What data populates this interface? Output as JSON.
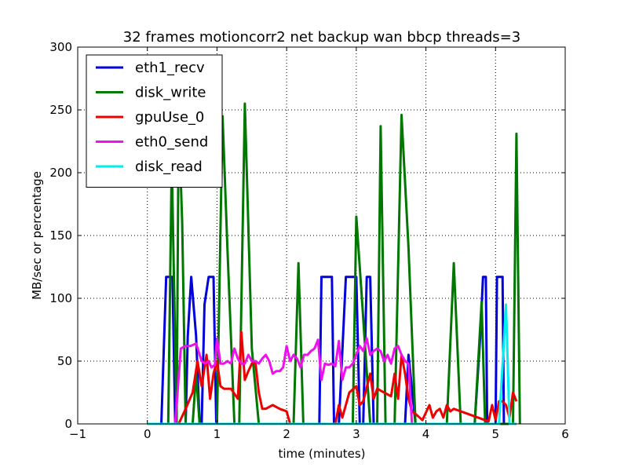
{
  "chart_data": {
    "type": "line",
    "title": "32 frames motioncorr2 net backup wan bbcp threads=3",
    "xlabel": "time (minutes)",
    "ylabel": "MB/sec or percentage",
    "xlim": [
      -1,
      6
    ],
    "ylim": [
      0,
      300
    ],
    "xticks": [
      -1,
      0,
      1,
      2,
      3,
      4,
      5,
      6
    ],
    "yticks": [
      0,
      50,
      100,
      150,
      200,
      250,
      300
    ],
    "grid": true,
    "legend_position": "top-left",
    "series": [
      {
        "name": "eth1_recv",
        "color": "#0000dd",
        "x": [
          0,
          0.2,
          0.27,
          0.3,
          0.33,
          0.36,
          0.4,
          0.45,
          0.5,
          0.55,
          0.58,
          0.63,
          0.7,
          0.75,
          0.78,
          0.82,
          0.88,
          0.95,
          0.99,
          1.05,
          2.4,
          2.47,
          2.5,
          2.6,
          2.65,
          2.68,
          2.75,
          2.85,
          2.95,
          3.0,
          3.05,
          3.1,
          3.15,
          3.2,
          3.25,
          3.35,
          3.7,
          3.75,
          3.85,
          4.7,
          4.78,
          4.82,
          4.86,
          4.88,
          4.92,
          5.0,
          5.02,
          5.06,
          5.1,
          5.12,
          5.2,
          5.3
        ],
        "y": [
          0,
          0,
          117,
          117,
          117,
          117,
          0,
          0,
          0,
          0,
          70,
          117,
          70,
          0,
          0,
          95,
          117,
          117,
          0,
          0,
          0,
          0,
          117,
          117,
          117,
          0,
          0,
          117,
          117,
          117,
          0,
          0,
          117,
          117,
          0,
          0,
          0,
          55,
          0,
          0,
          70,
          117,
          117,
          0,
          0,
          0,
          117,
          117,
          117,
          0,
          0,
          0
        ]
      },
      {
        "name": "disk_write",
        "color": "#007700",
        "x": [
          0,
          0.3,
          0.35,
          0.42,
          0.45,
          0.5,
          0.55,
          0.6,
          0.65,
          0.7,
          0.75,
          0.8,
          0.88,
          1.0,
          1.08,
          1.15,
          1.25,
          1.32,
          1.4,
          1.5,
          1.6,
          2.1,
          2.17,
          2.24,
          2.4,
          2.95,
          3.0,
          3.08,
          3.2,
          3.3,
          3.35,
          3.42,
          3.55,
          3.65,
          3.75,
          3.85,
          4.3,
          4.4,
          4.5,
          4.7,
          4.8,
          4.85,
          4.9,
          5.15,
          5.2,
          5.25,
          5.3,
          5.35
        ],
        "y": [
          0,
          0,
          210,
          0,
          245,
          160,
          0,
          0,
          0,
          40,
          0,
          0,
          0,
          0,
          245,
          140,
          0,
          0,
          255,
          60,
          0,
          0,
          128,
          0,
          0,
          0,
          165,
          100,
          0,
          0,
          237,
          0,
          0,
          246,
          140,
          0,
          0,
          128,
          0,
          0,
          97,
          0,
          0,
          0,
          0,
          0,
          231,
          0
        ]
      },
      {
        "name": "gpuUse_0",
        "color": "#ee0000",
        "x": [
          0.45,
          0.55,
          0.65,
          0.72,
          0.78,
          0.85,
          0.9,
          0.95,
          1.0,
          1.05,
          1.1,
          1.2,
          1.3,
          1.35,
          1.4,
          1.45,
          1.5,
          1.55,
          1.6,
          1.65,
          1.7,
          1.8,
          1.9,
          2.0,
          2.05,
          2.7,
          2.75,
          2.8,
          2.9,
          3.0,
          3.05,
          3.1,
          3.2,
          3.25,
          3.3,
          3.4,
          3.5,
          3.55,
          3.6,
          3.65,
          3.7,
          3.75,
          3.8,
          3.85,
          3.95,
          4.05,
          4.1,
          4.15,
          4.2,
          4.25,
          4.3,
          4.35,
          4.4,
          4.9,
          4.95,
          5.0,
          5.05,
          5.1,
          5.15,
          5.2,
          5.25,
          5.3
        ],
        "y": [
          0,
          12,
          25,
          50,
          30,
          55,
          20,
          40,
          50,
          30,
          28,
          28,
          20,
          73,
          35,
          42,
          48,
          50,
          25,
          12,
          12,
          15,
          12,
          10,
          0,
          0,
          15,
          5,
          25,
          30,
          15,
          18,
          40,
          20,
          28,
          25,
          22,
          40,
          20,
          55,
          40,
          20,
          10,
          8,
          3,
          15,
          5,
          10,
          12,
          5,
          15,
          10,
          12,
          2,
          15,
          3,
          18,
          18,
          15,
          5,
          25,
          18
        ]
      },
      {
        "name": "eth0_send",
        "color": "#ee11ee",
        "x": [
          0.4,
          0.48,
          0.55,
          0.62,
          0.7,
          0.78,
          0.83,
          0.88,
          0.92,
          0.97,
          1.0,
          1.05,
          1.1,
          1.15,
          1.2,
          1.25,
          1.3,
          1.35,
          1.4,
          1.45,
          1.5,
          1.55,
          1.6,
          1.65,
          1.7,
          1.75,
          1.8,
          1.85,
          1.9,
          1.95,
          2.0,
          2.05,
          2.1,
          2.15,
          2.2,
          2.25,
          2.3,
          2.35,
          2.4,
          2.45,
          2.5,
          2.55,
          2.6,
          2.65,
          2.7,
          2.75,
          2.8,
          2.85,
          2.9,
          2.95,
          3.0,
          3.05,
          3.1,
          3.15,
          3.2,
          3.25,
          3.3,
          3.35,
          3.4,
          3.45,
          3.5,
          3.55,
          3.6,
          3.65,
          3.7,
          3.75,
          3.8,
          3.85
        ],
        "y": [
          0,
          60,
          62,
          62,
          64,
          50,
          48,
          50,
          45,
          47,
          68,
          48,
          48,
          50,
          48,
          60,
          52,
          48,
          48,
          55,
          50,
          50,
          48,
          52,
          55,
          50,
          40,
          42,
          42,
          45,
          62,
          50,
          55,
          52,
          45,
          55,
          55,
          58,
          60,
          67,
          35,
          48,
          47,
          48,
          46,
          66,
          35,
          45,
          45,
          48,
          55,
          62,
          58,
          68,
          55,
          58,
          60,
          58,
          50,
          55,
          48,
          60,
          62,
          55,
          50,
          48,
          0,
          0
        ]
      },
      {
        "name": "disk_read",
        "color": "#00eeee",
        "x": [
          0,
          5.05,
          5.12,
          5.15,
          5.2,
          5.3
        ],
        "y": [
          0,
          0,
          65,
          95,
          0,
          0
        ]
      }
    ]
  }
}
